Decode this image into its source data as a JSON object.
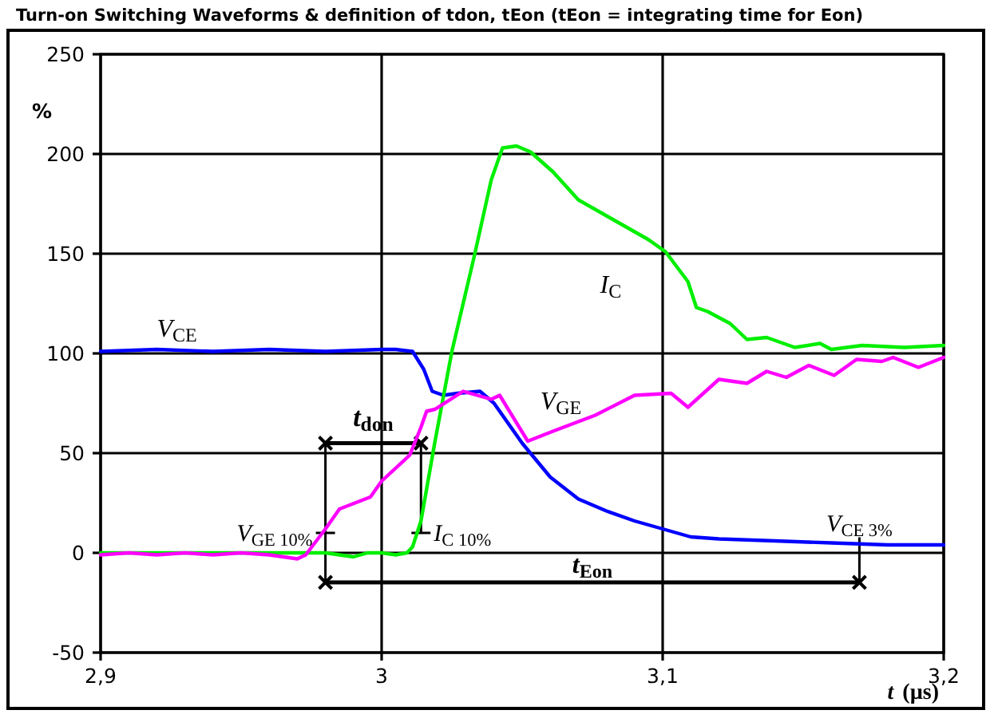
{
  "chart_data": {
    "type": "line",
    "title": "Turn-on Switching Waveforms & definition of tdon, tEon (tEon = integrating time for Eon)",
    "xlabel": "t (µs)",
    "ylabel": "%",
    "xlim": [
      2.9,
      3.2
    ],
    "xticks": [
      {
        "value": 2.9,
        "label": "2,9"
      },
      3,
      {
        "value": 3.1,
        "label": "3,1"
      },
      {
        "value": 3.2,
        "label": "3,2"
      }
    ],
    "ylim": [
      -50,
      250
    ],
    "yticks": [
      -50,
      0,
      50,
      100,
      150,
      200,
      250
    ],
    "grid": true,
    "marker": "none",
    "line_style": "solid",
    "series": [
      {
        "name": "V$_{CE}$",
        "color": "#0000ff",
        "x": [
          2.9,
          2.92,
          2.94,
          2.96,
          2.98,
          3.0,
          3.005,
          3.011,
          3.015,
          3.018,
          3.022,
          3.027,
          3.035,
          3.04,
          3.05,
          3.06,
          3.07,
          3.08,
          3.09,
          3.1,
          3.11,
          3.12,
          3.14,
          3.16,
          3.18,
          3.2
        ],
        "values": [
          101,
          102,
          101,
          102,
          101,
          102,
          102,
          101,
          92,
          81,
          79,
          80,
          81,
          75,
          55,
          38,
          27,
          21,
          16,
          12,
          8,
          7,
          6,
          5,
          4,
          4
        ]
      },
      {
        "name": "I$_{C}$",
        "color": "#00ee00",
        "x": [
          2.9,
          2.95,
          2.98,
          2.99,
          2.995,
          3.0,
          3.005,
          3.009,
          3.011,
          3.014,
          3.019,
          3.025,
          3.033,
          3.039,
          3.043,
          3.048,
          3.053,
          3.061,
          3.07,
          3.08,
          3.095,
          3.101,
          3.109,
          3.112,
          3.116,
          3.124,
          3.13,
          3.137,
          3.147,
          3.156,
          3.16,
          3.171,
          3.186,
          3.2
        ],
        "values": [
          0,
          0,
          0,
          -2,
          0,
          0,
          -1,
          0,
          3,
          16,
          56,
          101,
          149,
          187,
          203,
          204,
          201,
          191,
          177,
          169,
          157,
          151,
          136,
          123,
          121,
          115,
          107,
          108,
          103,
          105,
          102,
          104,
          103,
          104
        ]
      },
      {
        "name": "V$_{GE}$",
        "color": "#ff00ff",
        "x": [
          2.9,
          2.91,
          2.92,
          2.93,
          2.94,
          2.95,
          2.96,
          2.97,
          2.973,
          2.98,
          2.985,
          2.996,
          3.0,
          3.01,
          3.014,
          3.016,
          3.019,
          3.029,
          3.039,
          3.042,
          3.052,
          3.061,
          3.076,
          3.09,
          3.103,
          3.109,
          3.12,
          3.13,
          3.137,
          3.144,
          3.152,
          3.161,
          3.169,
          3.178,
          3.182,
          3.191,
          3.2
        ],
        "values": [
          -1,
          0,
          -1,
          0,
          -1,
          0,
          -1,
          -3,
          -1,
          12,
          22,
          28,
          36,
          49,
          63,
          71,
          72,
          81,
          77,
          79,
          56,
          61,
          69,
          79,
          80,
          73,
          87,
          85,
          91,
          88,
          94,
          89,
          97,
          96,
          98,
          93,
          98
        ]
      }
    ],
    "annotations": [
      {
        "text": "V$_{GE 10%}$",
        "x": 2.98,
        "y": 10
      },
      {
        "text": "I$_{C 10%}$",
        "x": 3.014,
        "y": 10
      },
      {
        "text": "V$_{CE 3%}$",
        "x": 3.17,
        "y": 3
      },
      {
        "text": "t$_{don}$",
        "x": 2.98,
        "y": 55
      },
      "t$_{Eon}$"
    ]
  }
}
